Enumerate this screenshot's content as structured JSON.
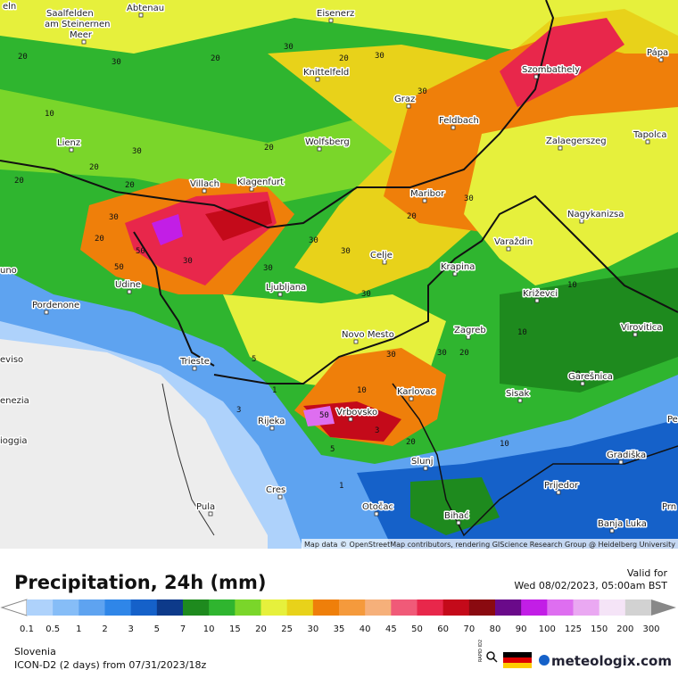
{
  "map": {
    "cities": [
      "eln",
      "Saalfelden",
      "am Steinernen",
      "Meer",
      "Abtenau",
      "Eisenerz",
      "Knittelfeld",
      "Graz",
      "Szombathely",
      "Pápa",
      "Feldbach",
      "Lienz",
      "Wolfsberg",
      "Zalaegerszeg",
      "Tapolca",
      "Villach",
      "Klagenfurt",
      "Maribor",
      "Nagykanizsa",
      "Varaždin",
      "Celje",
      "uno",
      "Krapina",
      "Udine",
      "Ljubljana",
      "Križevci",
      "Pordenone",
      "Virovitica",
      "Novo Mesto",
      "Zagreb",
      "eviso",
      "Trieste",
      "Garešnica",
      "Karlovac",
      "Sisak",
      "enezia",
      "Vrbovsko",
      "Rijeka",
      "Pe",
      "ioggia",
      "Gradiška",
      "Slunj",
      "Prijedor",
      "Cres",
      "Pula",
      "Otočac",
      "Bihać",
      "Prn",
      "Banja Luka"
    ],
    "contour_labels": [
      20,
      30,
      20,
      30,
      20,
      30,
      30,
      20,
      10,
      20,
      30,
      20,
      30,
      50,
      50,
      30,
      20,
      20,
      30,
      30,
      30,
      20,
      30,
      10,
      10,
      30,
      30,
      20,
      50,
      30,
      20,
      10,
      5,
      3,
      1,
      1,
      3,
      5,
      10,
      10
    ],
    "attribution": "Map data © OpenStreetMap contributors, rendering GIScience Research Group @ Heidelberg University"
  },
  "legend": {
    "title": "Precipitation, 24h (mm)",
    "valid_label": "Valid for",
    "valid_time": "Wed 08/02/2023, 05:00am BST",
    "labels": [
      0.1,
      0.5,
      1,
      2,
      3,
      5,
      7,
      10,
      15,
      20,
      25,
      30,
      35,
      40,
      45,
      50,
      60,
      70,
      80,
      90,
      100,
      125,
      150,
      200,
      300
    ],
    "colors": [
      "#aed2fb",
      "#86bdf7",
      "#5ea3f0",
      "#2f86e8",
      "#1561c9",
      "#0d3a8a",
      "#1e8a1e",
      "#2fb52f",
      "#7ad62a",
      "#e6f03c",
      "#e8d21a",
      "#ef7f0a",
      "#f59a3c",
      "#f6b07a",
      "#f05a78",
      "#e8274b",
      "#c40a1a",
      "#8a0a10",
      "#6a0a8a",
      "#c21ee6",
      "#de6ef0",
      "#eaa8f2",
      "#f5e4f7",
      "#d2d2d2"
    ],
    "region": "Slovenia",
    "model": "ICON-D2 (2 days) from 07/31/2023/18z",
    "badge": "RAPID ID2",
    "brand": "meteologix.com"
  }
}
